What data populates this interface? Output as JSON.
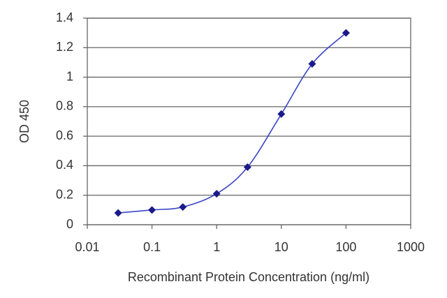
{
  "chart_data": {
    "type": "line",
    "x_label": "Recombinant Protein Concentration (ng/ml)",
    "y_label": "OD 450",
    "x": [
      0.03,
      0.1,
      0.3,
      1,
      3,
      10,
      30,
      100
    ],
    "values": [
      0.08,
      0.1,
      0.12,
      0.21,
      0.39,
      0.75,
      1.09,
      1.3
    ],
    "color": "#3a45c8",
    "marker_color": "#1a1a8a",
    "xscale": "log",
    "xlim": [
      0.01,
      1000
    ],
    "xticks": [
      0.01,
      0.1,
      1,
      10,
      100,
      1000
    ],
    "ylim": [
      0,
      1.4
    ],
    "yticks": [
      0,
      0.2,
      0.4,
      0.6,
      0.8,
      1,
      1.2,
      1.4
    ],
    "grid": true
  }
}
